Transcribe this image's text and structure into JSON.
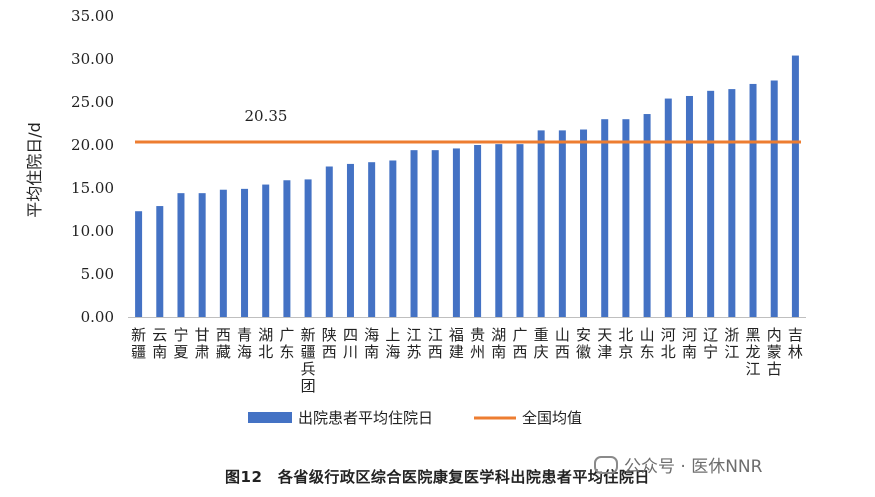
{
  "chart_data": {
    "type": "bar",
    "ylabel": "平均住院日/d",
    "ylim": [
      0,
      35
    ],
    "yticks": [
      "0.00",
      "5.00",
      "10.00",
      "15.00",
      "20.00",
      "25.00",
      "30.00",
      "35.00"
    ],
    "categories": [
      "新疆",
      "云南",
      "宁夏",
      "甘肃",
      "西藏",
      "青海",
      "湖北",
      "广东",
      "新疆兵团",
      "陕西",
      "四川",
      "海南",
      "上海",
      "江苏",
      "江西",
      "福建",
      "贵州",
      "湖南",
      "广西",
      "重庆",
      "山西",
      "安徽",
      "天津",
      "北京",
      "山东",
      "河北",
      "河南",
      "辽宁",
      "浙江",
      "黑龙江",
      "内蒙古",
      "吉林"
    ],
    "series": [
      {
        "name": "出院患者平均住院日",
        "color": "#4472C4",
        "values": [
          12.3,
          12.9,
          14.4,
          14.4,
          14.8,
          14.9,
          15.4,
          15.9,
          16.0,
          17.5,
          17.8,
          18.0,
          18.2,
          19.4,
          19.4,
          19.6,
          20.0,
          20.1,
          20.1,
          21.7,
          21.7,
          21.8,
          23.0,
          23.0,
          23.6,
          25.4,
          25.7,
          26.3,
          26.5,
          27.1,
          27.5,
          30.4
        ]
      }
    ],
    "reference_line": {
      "name": "全国均值",
      "value": 20.35,
      "label": "20.35",
      "color": "#ED7D31"
    },
    "grid": false,
    "legend_position": "bottom"
  },
  "caption": "图12　各省级行政区综合医院康复医学科出院患者平均住院日",
  "watermark": "公众号 · 医休NNR"
}
